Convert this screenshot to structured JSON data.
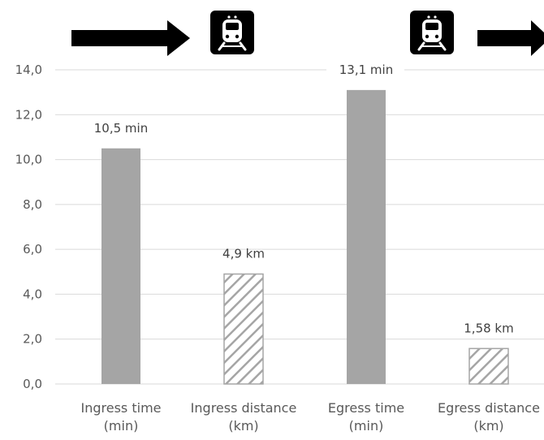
{
  "chart_data": {
    "type": "bar",
    "categories": [
      [
        "Ingress  time",
        "(min)"
      ],
      [
        "Ingress distance",
        "(km)"
      ],
      [
        "Egress  time",
        "(min)"
      ],
      [
        "Egress distance",
        "(km)"
      ]
    ],
    "values": [
      10.5,
      4.9,
      13.1,
      1.58
    ],
    "data_labels": [
      "10,5 min",
      "4,9 km",
      "13,1 min",
      "1,58 km"
    ],
    "bar_styles": [
      "solid",
      "hatched",
      "solid",
      "hatched"
    ],
    "ylim": [
      0,
      14
    ],
    "yticks": [
      0,
      2,
      4,
      6,
      8,
      10,
      12,
      14
    ],
    "ytick_labels": [
      "0,0",
      "2,0",
      "4,0",
      "6,0",
      "8,0",
      "10,0",
      "12,0",
      "14,0"
    ],
    "grid": true,
    "title": "",
    "xlabel": "",
    "ylabel": "",
    "colors": {
      "bar": "#a5a5a5",
      "grid": "#d9d9d9",
      "axis": "#d9d9d9",
      "icon_bg": "#000000",
      "icon_fg": "#ffffff",
      "arrow": "#000000"
    },
    "icons": [
      "right-arrow-icon",
      "train-icon",
      "train-icon",
      "right-arrow-icon"
    ]
  }
}
